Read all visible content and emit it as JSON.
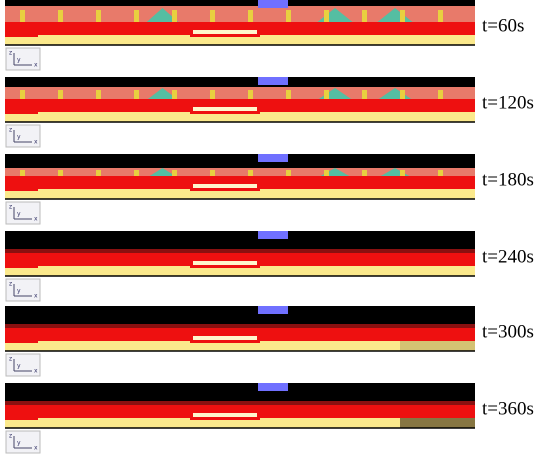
{
  "panels": [
    {
      "label": "t=60s"
    },
    {
      "label": "t=120s"
    },
    {
      "label": "t=180s"
    },
    {
      "label": "t=240s"
    },
    {
      "label": "t=300s"
    },
    {
      "label": "t=360s"
    }
  ],
  "axis_icon": [
    "z",
    "y",
    "x"
  ]
}
